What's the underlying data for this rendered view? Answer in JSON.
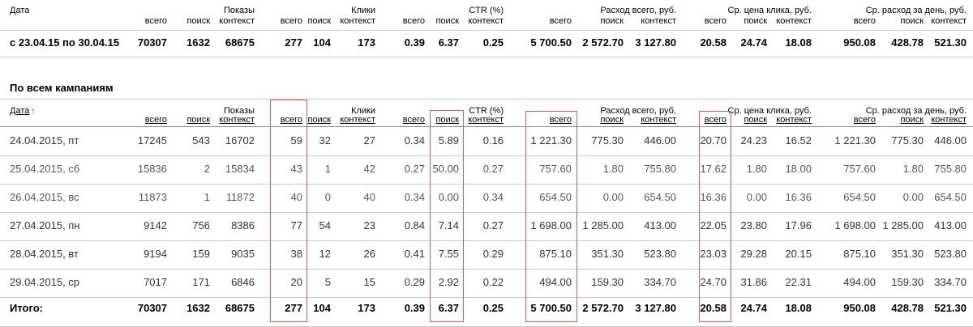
{
  "top": {
    "date_header": "Дата",
    "groups": {
      "impressions": "Показы",
      "clicks": "Клики",
      "ctr": "CTR (%)",
      "cost": "Расход всего, руб.",
      "cpc": "Ср. цена клика, руб.",
      "daily": "Ср. расход за день, руб."
    },
    "sub": {
      "total": "всего",
      "search": "поиск",
      "context": "контекст"
    },
    "period_row": {
      "label": "с 23.04.15 по 30.04.15",
      "values": [
        "70307",
        "1632",
        "68675",
        "277",
        "104",
        "173",
        "0.39",
        "6.37",
        "0.25",
        "5 700.50",
        "2 572.70",
        "3 127.80",
        "20.58",
        "24.74",
        "18.08",
        "950.08",
        "428.78",
        "521.30"
      ]
    }
  },
  "section_title": "По всем кампаниям",
  "campaigns": {
    "date_header": "Дата",
    "sort_arrow": "↑",
    "groups": {
      "impressions": "Показы",
      "clicks": "Клики",
      "ctr": "CTR (%)",
      "cost": "Расход всего, руб.",
      "cpc": "Ср. цена клика, руб.",
      "daily": "Ср. расход за день, руб."
    },
    "sub": {
      "total": "всего",
      "search": "поиск",
      "context": "контекст"
    },
    "rows": [
      {
        "date": "24.04.2015, пт",
        "values": [
          "17245",
          "543",
          "16702",
          "59",
          "32",
          "27",
          "0.34",
          "5.89",
          "0.16",
          "1 221.30",
          "775.30",
          "446.00",
          "20.70",
          "24.23",
          "16.52",
          "1 221.30",
          "775.30",
          "446.00"
        ]
      },
      {
        "date": "25.04.2015, сб",
        "values": [
          "15836",
          "2",
          "15834",
          "43",
          "1",
          "42",
          "0.27",
          "50.00",
          "0.27",
          "757.60",
          "1.80",
          "755.80",
          "17.62",
          "1.80",
          "18.00",
          "757.60",
          "1.80",
          "755.80"
        ]
      },
      {
        "date": "26.04.2015, вс",
        "values": [
          "11873",
          "1",
          "11872",
          "40",
          "0",
          "40",
          "0.34",
          "0.00",
          "0.34",
          "654.50",
          "0.00",
          "654.50",
          "16.36",
          "0.00",
          "16.36",
          "654.50",
          "0.00",
          "654.50"
        ]
      },
      {
        "date": "27.04.2015, пн",
        "values": [
          "9142",
          "756",
          "8386",
          "77",
          "54",
          "23",
          "0.84",
          "7.14",
          "0.27",
          "1 698.00",
          "1 285.00",
          "413.00",
          "22.05",
          "23.80",
          "17.96",
          "1 698.00",
          "1 285.00",
          "413.00"
        ]
      },
      {
        "date": "28.04.2015, вт",
        "values": [
          "9194",
          "159",
          "9035",
          "38",
          "12",
          "26",
          "0.41",
          "7.55",
          "0.29",
          "875.10",
          "351.30",
          "523.80",
          "23.03",
          "29.28",
          "20.15",
          "875.10",
          "351.30",
          "523.80"
        ]
      },
      {
        "date": "29.04.2015, ср",
        "values": [
          "7017",
          "171",
          "6846",
          "20",
          "5",
          "15",
          "0.29",
          "2.92",
          "0.22",
          "494.00",
          "159.30",
          "334.70",
          "24.70",
          "31.86",
          "22.31",
          "494.00",
          "159.30",
          "334.70"
        ]
      }
    ],
    "total_row": {
      "label": "Итого:",
      "values": [
        "70307",
        "1632",
        "68675",
        "277",
        "104",
        "173",
        "0.39",
        "6.37",
        "0.25",
        "5 700.50",
        "2 572.70",
        "3 127.80",
        "20.58",
        "24.74",
        "18.08",
        "950.08",
        "428.78",
        "521.30"
      ]
    }
  },
  "colors": {
    "highlight": "#e05a5a",
    "divider": "#c8c8c8"
  }
}
